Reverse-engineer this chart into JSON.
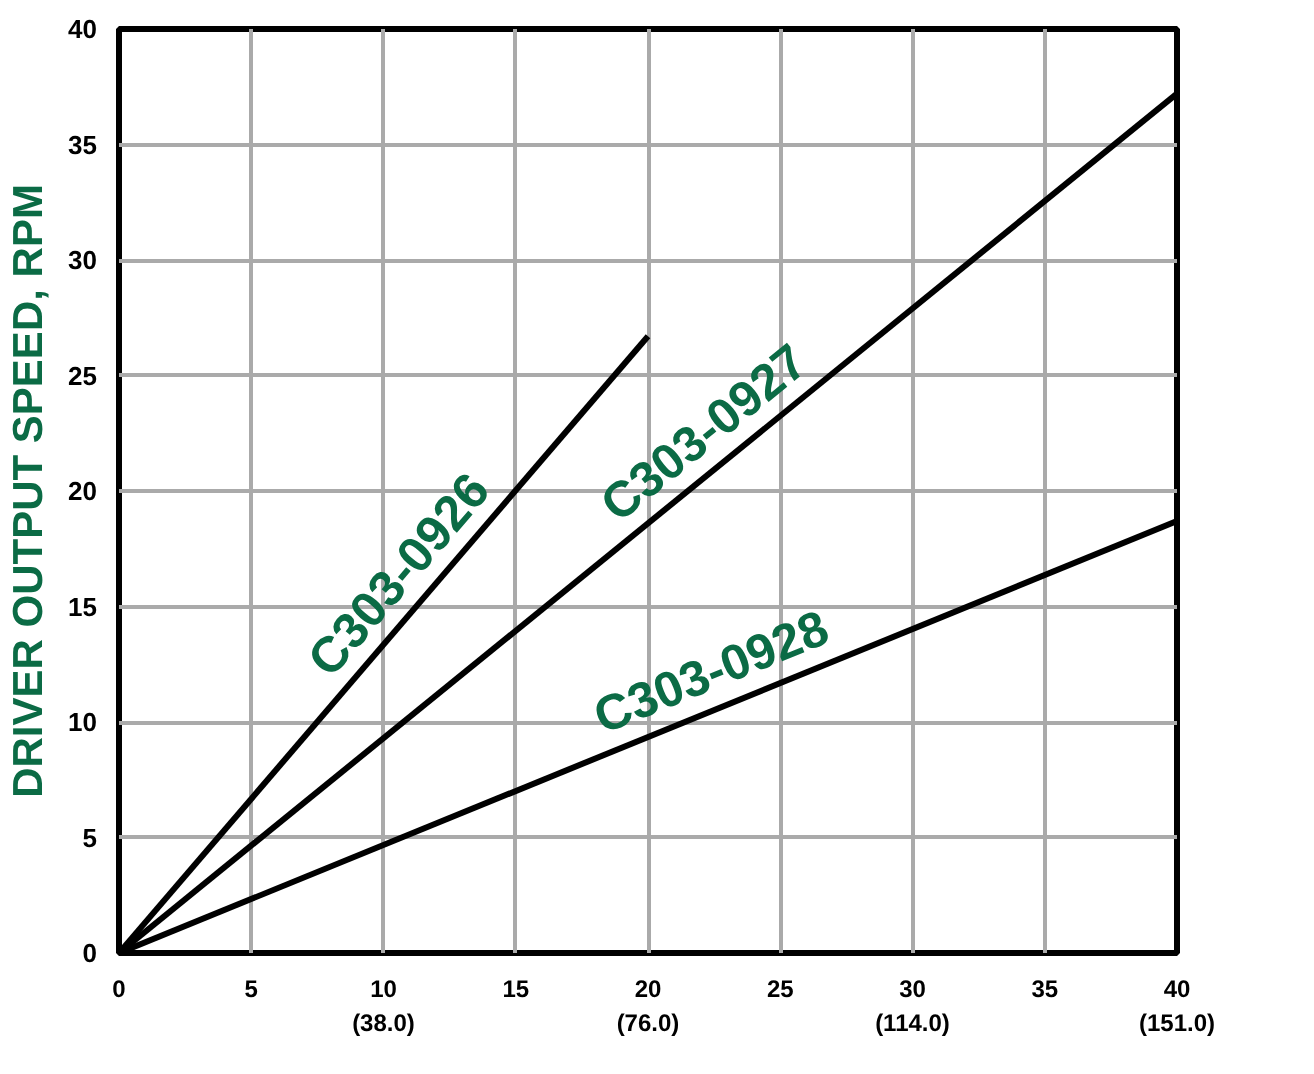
{
  "chart_data": {
    "type": "line",
    "ylabel": "DRIVER OUTPUT SPEED, RPM",
    "xlim": [
      0,
      40
    ],
    "ylim": [
      0,
      40
    ],
    "xticks": [
      0,
      5,
      {
        "value": 10,
        "label": "10\n(38.0)"
      },
      15,
      {
        "value": 20,
        "label": "20\n(76.0)"
      },
      25,
      {
        "value": 30,
        "label": "30\n(114.0)"
      },
      35,
      {
        "value": 40,
        "label": "40\n(151.0)"
      }
    ],
    "yticks": [
      0,
      5,
      10,
      15,
      20,
      25,
      30,
      35,
      40
    ],
    "series": [
      {
        "name": "C303-0926",
        "color": "#000000",
        "x": [
          0,
          20
        ],
        "values": [
          0,
          26.7
        ]
      },
      {
        "name": "C303-0927",
        "color": "#000000",
        "x": [
          0,
          40
        ],
        "values": [
          0,
          37.2
        ]
      },
      {
        "name": "C303-0928",
        "color": "#000000",
        "x": [
          0,
          40
        ],
        "values": [
          0,
          18.7
        ]
      }
    ],
    "grid": true,
    "marker": "none",
    "line_style": "solid"
  }
}
